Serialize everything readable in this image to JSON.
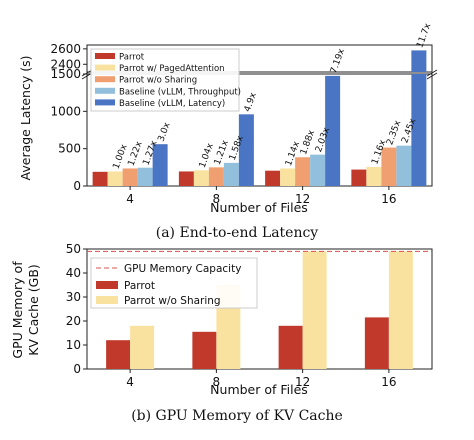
{
  "chart_data": [
    {
      "type": "bar",
      "title": "(a) End-to-end Latency",
      "xlabel": "Number of Files",
      "ylabel": "Average Latency (s)",
      "categories": [
        "4",
        "8",
        "12",
        "16"
      ],
      "y_ticks_lower": [
        "0",
        "500",
        "1000",
        "1500"
      ],
      "y_ticks_upper": [
        "2400",
        "2600"
      ],
      "ylim_lower": [
        0,
        1500
      ],
      "ylim_upper": [
        2300,
        2650
      ],
      "broken_axis": true,
      "grid": false,
      "legend_position": "top-left",
      "series": [
        {
          "name": "Parrot",
          "color": "#c0392b",
          "values": [
            190,
            195,
            205,
            220
          ],
          "labels": [
            "",
            "",
            "",
            ""
          ]
        },
        {
          "name": "Parrot w/ PagedAttention",
          "color": "#f9e2a0",
          "values": [
            195,
            210,
            235,
            255
          ],
          "labels": [
            "1.00x",
            "1.04x",
            "1.14x",
            "1.16x"
          ]
        },
        {
          "name": "Parrot w/o Sharing",
          "color": "#f0a070",
          "values": [
            235,
            250,
            385,
            515
          ],
          "labels": [
            "1.22x",
            "1.21x",
            "1.88x",
            "2.35x"
          ]
        },
        {
          "name": "Baseline (vLLM, Throughput)",
          "color": "#92bfdb",
          "values": [
            245,
            310,
            420,
            540
          ],
          "labels": [
            "1.27x",
            "1.58x",
            "2.03x",
            "2.45x"
          ]
        },
        {
          "name": "Baseline (vLLM, Latency)",
          "color": "#4a74c4",
          "values": [
            560,
            960,
            1475,
            2580
          ],
          "labels": [
            "3.0x",
            "4.9x",
            "7.19x",
            "11.7x"
          ]
        }
      ]
    },
    {
      "type": "bar",
      "title": "(b) GPU Memory of KV Cache",
      "xlabel": "Number of Files",
      "ylabel": "GPU Memory of KV Cache (GB)",
      "ylabel_lines": [
        "GPU Memory of",
        "KV Cache (GB)"
      ],
      "categories": [
        "4",
        "8",
        "12",
        "16"
      ],
      "y_ticks": [
        "0",
        "10",
        "20",
        "30",
        "40",
        "50"
      ],
      "ylim": [
        0,
        50
      ],
      "grid": false,
      "legend_position": "top-left",
      "capacity_line": {
        "name": "GPU Memory Capacity",
        "value": 49,
        "color": "#d9534f"
      },
      "series": [
        {
          "name": "Parrot",
          "color": "#c0392b",
          "values": [
            12,
            15.5,
            18,
            21.5
          ]
        },
        {
          "name": "Parrot w/o Sharing",
          "color": "#f9e2a0",
          "values": [
            18,
            35,
            49,
            49
          ]
        }
      ]
    }
  ]
}
